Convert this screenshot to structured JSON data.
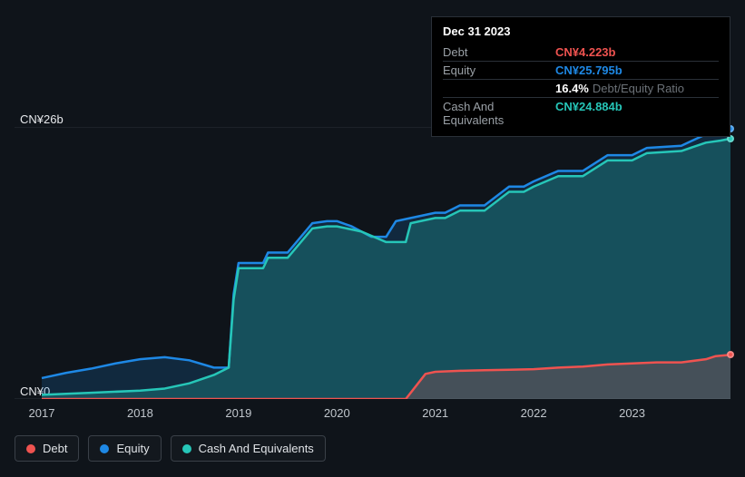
{
  "chart": {
    "type": "area",
    "background_color": "#0f141a",
    "grid_color": "#2a3038",
    "text_color": "#c0c6cc",
    "tooltip_bg": "#000000",
    "y_max_label": "CN¥26b",
    "y_min_label": "CN¥0",
    "y_min": 0,
    "y_max": 26,
    "x_ticks": [
      "2017",
      "2018",
      "2019",
      "2020",
      "2021",
      "2022",
      "2023"
    ],
    "x_range": 7,
    "series": {
      "debt": {
        "label": "Debt",
        "color": "#ef5350",
        "fill": "rgba(239,83,80,0.22)",
        "data": [
          [
            0.0,
            0
          ],
          [
            0.2,
            0
          ],
          [
            1.0,
            0
          ],
          [
            2.0,
            0
          ],
          [
            3.0,
            0
          ],
          [
            3.5,
            0
          ],
          [
            3.7,
            0
          ],
          [
            3.9,
            2.4
          ],
          [
            4.0,
            2.6
          ],
          [
            4.25,
            2.7
          ],
          [
            4.5,
            2.75
          ],
          [
            4.75,
            2.8
          ],
          [
            5.0,
            2.85
          ],
          [
            5.25,
            3.0
          ],
          [
            5.5,
            3.1
          ],
          [
            5.75,
            3.3
          ],
          [
            6.0,
            3.4
          ],
          [
            6.25,
            3.5
          ],
          [
            6.5,
            3.5
          ],
          [
            6.75,
            3.8
          ],
          [
            6.85,
            4.1
          ],
          [
            7.0,
            4.223
          ]
        ]
      },
      "equity": {
        "label": "Equity",
        "color": "#1e88e5",
        "fill": "rgba(30,136,229,0.18)",
        "data": [
          [
            0.0,
            2.0
          ],
          [
            0.25,
            2.5
          ],
          [
            0.5,
            2.9
          ],
          [
            0.75,
            3.4
          ],
          [
            1.0,
            3.8
          ],
          [
            1.25,
            4.0
          ],
          [
            1.5,
            3.7
          ],
          [
            1.75,
            3.0
          ],
          [
            1.9,
            3.0
          ],
          [
            1.95,
            10.0
          ],
          [
            2.0,
            13.0
          ],
          [
            2.05,
            13.0
          ],
          [
            2.25,
            13.0
          ],
          [
            2.3,
            14.0
          ],
          [
            2.5,
            14.0
          ],
          [
            2.75,
            16.8
          ],
          [
            2.9,
            17.0
          ],
          [
            3.0,
            17.0
          ],
          [
            3.15,
            16.5
          ],
          [
            3.35,
            15.5
          ],
          [
            3.5,
            15.5
          ],
          [
            3.6,
            17.0
          ],
          [
            3.75,
            17.3
          ],
          [
            4.0,
            17.8
          ],
          [
            4.1,
            17.8
          ],
          [
            4.25,
            18.5
          ],
          [
            4.5,
            18.5
          ],
          [
            4.75,
            20.3
          ],
          [
            4.9,
            20.3
          ],
          [
            5.0,
            20.8
          ],
          [
            5.25,
            21.8
          ],
          [
            5.5,
            21.8
          ],
          [
            5.75,
            23.3
          ],
          [
            6.0,
            23.3
          ],
          [
            6.15,
            24.0
          ],
          [
            6.5,
            24.2
          ],
          [
            6.75,
            25.3
          ],
          [
            6.9,
            25.5
          ],
          [
            7.0,
            25.795
          ]
        ]
      },
      "cash": {
        "label": "Cash And Equivalents",
        "color": "#26c6b8",
        "fill": "rgba(38,198,184,0.25)",
        "data": [
          [
            0.0,
            0.4
          ],
          [
            0.5,
            0.6
          ],
          [
            1.0,
            0.8
          ],
          [
            1.25,
            1.0
          ],
          [
            1.5,
            1.5
          ],
          [
            1.75,
            2.3
          ],
          [
            1.9,
            3.0
          ],
          [
            1.95,
            9.5
          ],
          [
            2.0,
            12.5
          ],
          [
            2.05,
            12.5
          ],
          [
            2.25,
            12.5
          ],
          [
            2.3,
            13.5
          ],
          [
            2.5,
            13.5
          ],
          [
            2.75,
            16.3
          ],
          [
            2.9,
            16.5
          ],
          [
            3.0,
            16.5
          ],
          [
            3.25,
            16.0
          ],
          [
            3.5,
            15.0
          ],
          [
            3.7,
            15.0
          ],
          [
            3.75,
            16.8
          ],
          [
            4.0,
            17.3
          ],
          [
            4.1,
            17.3
          ],
          [
            4.25,
            18.0
          ],
          [
            4.5,
            18.0
          ],
          [
            4.75,
            19.8
          ],
          [
            4.9,
            19.8
          ],
          [
            5.0,
            20.3
          ],
          [
            5.25,
            21.3
          ],
          [
            5.5,
            21.3
          ],
          [
            5.75,
            22.8
          ],
          [
            6.0,
            22.8
          ],
          [
            6.15,
            23.5
          ],
          [
            6.5,
            23.7
          ],
          [
            6.75,
            24.5
          ],
          [
            6.9,
            24.7
          ],
          [
            7.0,
            24.884
          ]
        ]
      }
    }
  },
  "tooltip": {
    "date": "Dec 31 2023",
    "rows": [
      {
        "label": "Debt",
        "value": "CN¥4.223b",
        "color": "#ef5350"
      },
      {
        "label": "Equity",
        "value": "CN¥25.795b",
        "color": "#1e88e5"
      },
      {
        "label": "",
        "value": "16.4%",
        "suffix": "Debt/Equity Ratio",
        "color": "#ffffff"
      },
      {
        "label": "Cash And Equivalents",
        "value": "CN¥24.884b",
        "color": "#26c6b8"
      }
    ]
  },
  "legend": [
    {
      "key": "debt",
      "label": "Debt",
      "color": "#ef5350"
    },
    {
      "key": "equity",
      "label": "Equity",
      "color": "#1e88e5"
    },
    {
      "key": "cash",
      "label": "Cash And Equivalents",
      "color": "#26c6b8"
    }
  ]
}
